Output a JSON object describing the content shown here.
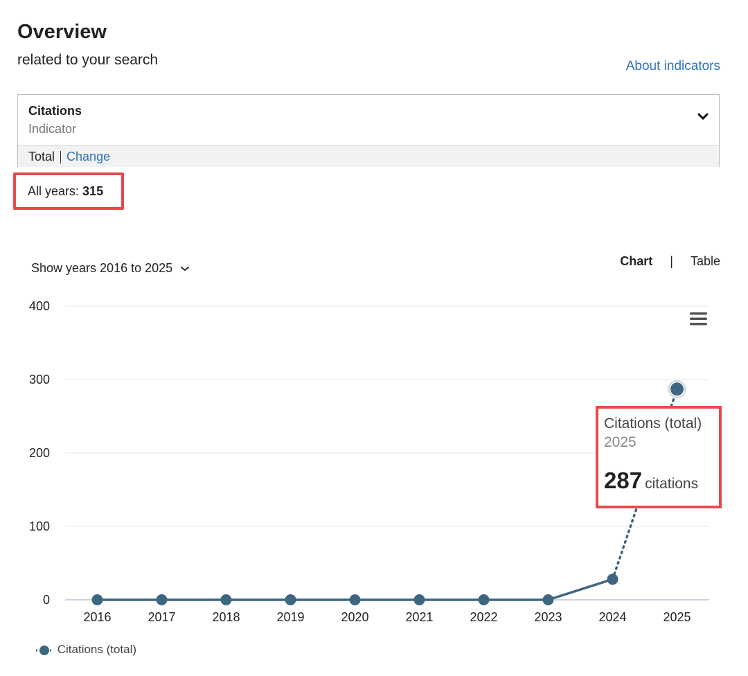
{
  "header": {
    "title": "Overview",
    "subtitle": "related to your search",
    "about_link": "About indicators"
  },
  "indicator": {
    "name": "Citations",
    "sublabel": "Indicator",
    "mode": "Total",
    "change_link": "Change"
  },
  "all_years": {
    "label": "All years:",
    "value": "315"
  },
  "controls": {
    "years_range": "Show years 2016 to 2025",
    "chart_tab": "Chart",
    "separator": "|",
    "table_tab": "Table"
  },
  "tooltip": {
    "series": "Citations (total)",
    "year": "2025",
    "value": "287",
    "unit": "citations"
  },
  "legend": {
    "label": "Citations (total)"
  },
  "colors": {
    "series": "#3d6680",
    "highlight": "#e84a4a",
    "link": "#2a73b8"
  },
  "chart_data": {
    "type": "line",
    "x": [
      2016,
      2017,
      2018,
      2019,
      2020,
      2021,
      2022,
      2023,
      2024,
      2025
    ],
    "x_tick_labels": [
      "2016",
      "2017",
      "2018",
      "2019",
      "2020",
      "2021",
      "2022",
      "2023",
      "2024",
      "2025"
    ],
    "series": [
      {
        "name": "Citations (total)",
        "values": [
          0,
          0,
          0,
          0,
          0,
          0,
          0,
          0,
          28,
          287
        ]
      }
    ],
    "ylim": [
      0,
      400
    ],
    "y_ticks": [
      0,
      100,
      200,
      300,
      400
    ],
    "grid": true,
    "last_segment_style": "dotted",
    "highlighted_point": 2025
  }
}
